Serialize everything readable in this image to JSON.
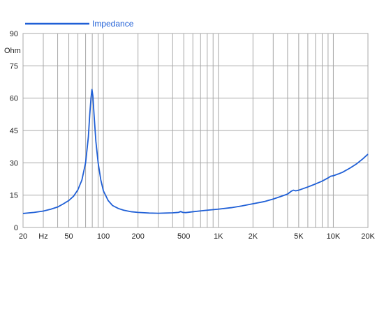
{
  "chart_data": {
    "type": "line",
    "title": "",
    "xlabel": "",
    "ylabel": "Ohm",
    "x_scale": "log",
    "xlim": [
      20,
      20000
    ],
    "ylim": [
      0,
      90
    ],
    "grid": true,
    "legend": {
      "position": "top-left",
      "entries": [
        "Impedance"
      ]
    },
    "y_ticks": [
      {
        "value": 0,
        "label": "0"
      },
      {
        "value": 15,
        "label": "15"
      },
      {
        "value": 30,
        "label": "30"
      },
      {
        "value": 45,
        "label": "45"
      },
      {
        "value": 60,
        "label": "60"
      },
      {
        "value": 75,
        "label": "75"
      },
      {
        "value": 90,
        "label": "90"
      }
    ],
    "x_tick_labels": [
      {
        "value": 20,
        "label": "20"
      },
      {
        "value": 30,
        "label": "Hz"
      },
      {
        "value": 50,
        "label": "50"
      },
      {
        "value": 100,
        "label": "100"
      },
      {
        "value": 200,
        "label": "200"
      },
      {
        "value": 500,
        "label": "500"
      },
      {
        "value": 1000,
        "label": "1K"
      },
      {
        "value": 2000,
        "label": "2K"
      },
      {
        "value": 5000,
        "label": "5K"
      },
      {
        "value": 10000,
        "label": "10K"
      },
      {
        "value": 20000,
        "label": "20K"
      }
    ],
    "x_gridlines": [
      20,
      30,
      40,
      50,
      60,
      70,
      80,
      90,
      100,
      200,
      300,
      400,
      500,
      600,
      700,
      800,
      900,
      1000,
      2000,
      3000,
      4000,
      5000,
      6000,
      7000,
      8000,
      9000,
      10000,
      20000
    ],
    "series": [
      {
        "name": "Impedance",
        "color": "#1f5fd6",
        "points": [
          [
            20,
            6.5
          ],
          [
            25,
            7.0
          ],
          [
            30,
            7.6
          ],
          [
            35,
            8.5
          ],
          [
            40,
            9.5
          ],
          [
            45,
            11.0
          ],
          [
            50,
            12.5
          ],
          [
            55,
            14.5
          ],
          [
            60,
            17.5
          ],
          [
            65,
            22.0
          ],
          [
            70,
            30.0
          ],
          [
            74,
            42.0
          ],
          [
            76,
            52.0
          ],
          [
            78,
            60.0
          ],
          [
            79.5,
            64.0
          ],
          [
            81,
            61.0
          ],
          [
            83,
            52.0
          ],
          [
            86,
            40.0
          ],
          [
            90,
            30.0
          ],
          [
            95,
            22.0
          ],
          [
            100,
            17.0
          ],
          [
            110,
            12.5
          ],
          [
            120,
            10.2
          ],
          [
            135,
            8.8
          ],
          [
            150,
            8.0
          ],
          [
            175,
            7.3
          ],
          [
            200,
            7.0
          ],
          [
            250,
            6.7
          ],
          [
            300,
            6.6
          ],
          [
            350,
            6.7
          ],
          [
            400,
            6.8
          ],
          [
            450,
            7.0
          ],
          [
            470,
            7.4
          ],
          [
            490,
            7.0
          ],
          [
            520,
            6.9
          ],
          [
            600,
            7.3
          ],
          [
            700,
            7.7
          ],
          [
            800,
            8.0
          ],
          [
            1000,
            8.5
          ],
          [
            1300,
            9.2
          ],
          [
            1600,
            10.0
          ],
          [
            2000,
            11.0
          ],
          [
            2500,
            12.0
          ],
          [
            3000,
            13.2
          ],
          [
            3500,
            14.4
          ],
          [
            4000,
            15.5
          ],
          [
            4300,
            16.8
          ],
          [
            4500,
            17.3
          ],
          [
            4700,
            17.0
          ],
          [
            5000,
            17.3
          ],
          [
            6000,
            18.8
          ],
          [
            7000,
            20.2
          ],
          [
            8000,
            21.5
          ],
          [
            9000,
            23.0
          ],
          [
            9500,
            23.8
          ],
          [
            10000,
            24.0
          ],
          [
            11000,
            24.8
          ],
          [
            12000,
            25.6
          ],
          [
            14000,
            27.6
          ],
          [
            16000,
            29.6
          ],
          [
            18000,
            31.8
          ],
          [
            20000,
            34.0
          ]
        ]
      }
    ]
  }
}
